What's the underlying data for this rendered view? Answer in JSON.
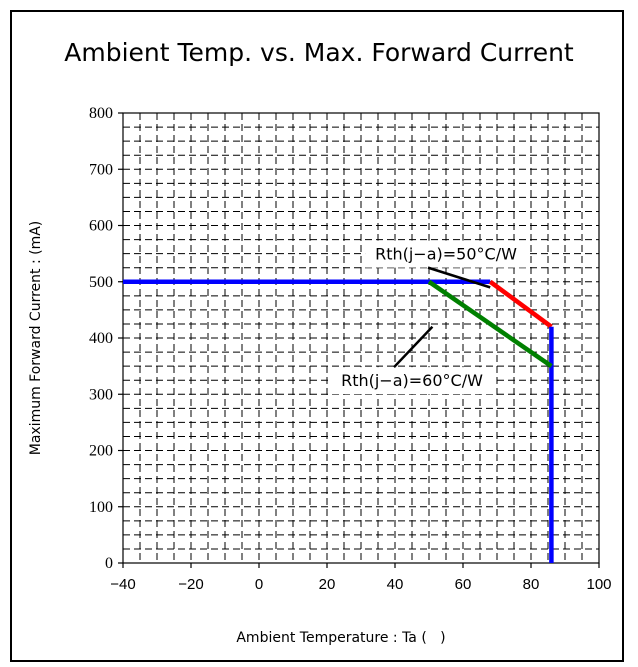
{
  "chart_data": {
    "type": "line",
    "title": "Ambient Temp. vs. Max. Forward Current",
    "xlabel": "Ambient Temperature : Ta (   )",
    "ylabel": "Maximum Forward Current : (mA)",
    "xlim": [
      -40,
      100
    ],
    "ylim": [
      0,
      800
    ],
    "x_ticks": [
      -40,
      -20,
      0,
      20,
      40,
      60,
      80,
      100
    ],
    "x_tick_labels": [
      "−40",
      "−20",
      "0",
      "20",
      "40",
      "60",
      "80",
      "100"
    ],
    "y_ticks": [
      0,
      100,
      200,
      300,
      400,
      500,
      600,
      700,
      800
    ],
    "y_tick_labels": [
      "0",
      "100",
      "200",
      "300",
      "400",
      "500",
      "600",
      "700",
      "800"
    ],
    "grid": true,
    "series": [
      {
        "color": "#0000ff",
        "points": [
          [
            -40,
            500
          ],
          [
            68,
            500
          ]
        ]
      },
      {
        "color": "#ff0000",
        "points": [
          [
            68,
            500
          ],
          [
            86,
            420
          ]
        ]
      },
      {
        "color": "#0000ff",
        "points": [
          [
            86,
            420
          ],
          [
            86,
            0
          ]
        ]
      },
      {
        "color": "#008000",
        "points": [
          [
            50,
            500
          ],
          [
            86,
            350
          ]
        ]
      }
    ],
    "annotations": [
      {
        "text": "Rth(j−a)=50°C/W",
        "at": [
          55,
          550
        ],
        "points_to": [
          68,
          490
        ]
      },
      {
        "text": "Rth(j−a)=60°C/W",
        "at": [
          45,
          325
        ],
        "points_to": [
          51,
          420
        ]
      }
    ]
  }
}
